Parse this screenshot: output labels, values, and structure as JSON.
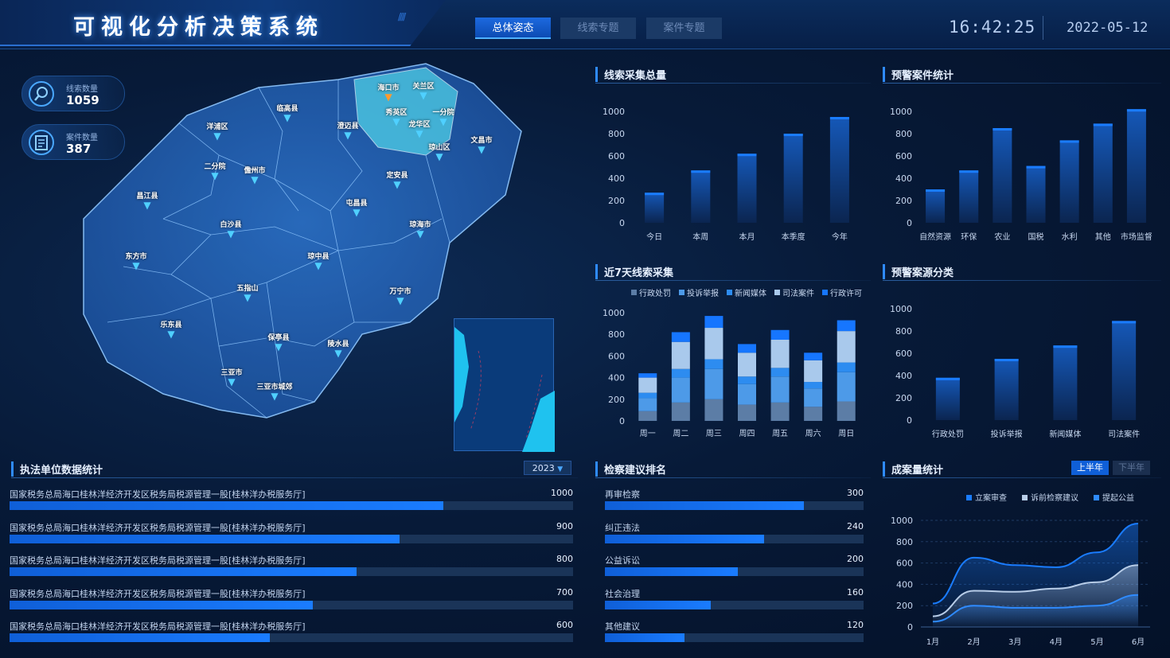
{
  "header": {
    "title": "可视化分析决策系统",
    "tabs": [
      {
        "label": "总体姿态",
        "active": true
      },
      {
        "label": "线索专题",
        "active": false
      },
      {
        "label": "案件专题",
        "active": false
      }
    ],
    "time": "16:42:25",
    "date": "2022-05-12"
  },
  "stats": [
    {
      "label": "线索数量",
      "value": "1059",
      "icon": "search-icon"
    },
    {
      "label": "案件数量",
      "value": "387",
      "icon": "document-icon"
    }
  ],
  "map": {
    "regions": [
      "海口市",
      "关兰区",
      "秀英区",
      "一分院",
      "龙华区",
      "琼山区",
      "文昌市",
      "临高县",
      "洋浦区",
      "澄迈县",
      "二分院",
      "儋州市",
      "定安县",
      "昌江县",
      "屯昌县",
      "白沙县",
      "琼海市",
      "东方市",
      "琼中县",
      "五指山",
      "万宁市",
      "乐东县",
      "保亭县",
      "陵水县",
      "三亚市",
      "三亚市城郊",
      "三沙市"
    ]
  },
  "panels": {
    "clue_total": "线索采集总量",
    "warning_cases": "预警案件统计",
    "clue_7days": "近7天线索采集",
    "warning_source": "预警案源分类",
    "enforcement": "执法单位数据统计",
    "suggestion_rank": "检察建议排名",
    "results": "成案量统计"
  },
  "year_select": "2023",
  "results_buttons": {
    "first_half": "上半年",
    "second_half": "下半年"
  },
  "enforcement_rows": [
    {
      "label": "国家税务总局海口桂林洋经济开发区税务局税源管理一股[桂林洋办税服务厅]",
      "value": 1000
    },
    {
      "label": "国家税务总局海口桂林洋经济开发区税务局税源管理一股[桂林洋办税服务厅]",
      "value": 900
    },
    {
      "label": "国家税务总局海口桂林洋经济开发区税务局税源管理一股[桂林洋办税服务厅]",
      "value": 800
    },
    {
      "label": "国家税务总局海口桂林洋经济开发区税务局税源管理一股[桂林洋办税服务厅]",
      "value": 700
    },
    {
      "label": "国家税务总局海口桂林洋经济开发区税务局税源管理一股[桂林洋办税服务厅]",
      "value": 600
    }
  ],
  "suggestion_rows": [
    {
      "label": "再审检察",
      "value": 300
    },
    {
      "label": "纠正违法",
      "value": 240
    },
    {
      "label": "公益诉讼",
      "value": 200
    },
    {
      "label": "社会治理",
      "value": 160
    },
    {
      "label": "其他建议",
      "value": 120
    }
  ],
  "colors": {
    "accent": "#1a7cff",
    "panel_bg": "#071a38",
    "highlight_region": "#4fd0e8"
  },
  "chart_data": [
    {
      "id": "clue_total",
      "type": "bar",
      "categories": [
        "今日",
        "本周",
        "本月",
        "本季度",
        "今年"
      ],
      "values": [
        270,
        470,
        620,
        800,
        950
      ],
      "ylim": [
        0,
        1000
      ],
      "yticks": [
        0,
        200,
        400,
        600,
        800,
        1000
      ]
    },
    {
      "id": "warning_cases",
      "type": "bar",
      "categories": [
        "自然资源",
        "环保",
        "农业",
        "国税",
        "水利",
        "其他",
        "市场监督"
      ],
      "values": [
        300,
        470,
        850,
        510,
        740,
        890,
        1020
      ],
      "ylim": [
        0,
        1000
      ],
      "yticks": [
        0,
        200,
        400,
        600,
        800,
        1000
      ]
    },
    {
      "id": "clue_7days",
      "type": "bar",
      "stacked": true,
      "categories": [
        "周一",
        "周二",
        "周三",
        "周四",
        "周五",
        "周六",
        "周日"
      ],
      "series": [
        {
          "name": "行政处罚",
          "color": "#5c7da6",
          "values": [
            90,
            170,
            200,
            150,
            170,
            130,
            180
          ]
        },
        {
          "name": "投诉举报",
          "color": "#4d9ae8",
          "values": [
            120,
            230,
            280,
            190,
            240,
            170,
            270
          ]
        },
        {
          "name": "新闻媒体",
          "color": "#2d8cf0",
          "values": [
            50,
            80,
            90,
            70,
            80,
            60,
            90
          ]
        },
        {
          "name": "司法案件",
          "color": "#a9c9ec",
          "values": [
            140,
            250,
            290,
            220,
            260,
            200,
            290
          ]
        },
        {
          "name": "行政许可",
          "color": "#1676ff",
          "values": [
            40,
            90,
            110,
            80,
            90,
            70,
            100
          ]
        }
      ],
      "ylim": [
        0,
        1000
      ],
      "yticks": [
        0,
        200,
        400,
        600,
        800,
        1000
      ],
      "legend": "top"
    },
    {
      "id": "warning_source",
      "type": "bar",
      "categories": [
        "行政处罚",
        "投诉举报",
        "新闻媒体",
        "司法案件"
      ],
      "values": [
        380,
        550,
        670,
        890
      ],
      "ylim": [
        0,
        1000
      ],
      "yticks": [
        0,
        200,
        400,
        600,
        800,
        1000
      ]
    },
    {
      "id": "results",
      "type": "area",
      "categories": [
        "1月",
        "2月",
        "3月",
        "4月",
        "5月",
        "6月"
      ],
      "series": [
        {
          "name": "立案审查",
          "color": "#1a7cff",
          "values": [
            220,
            650,
            580,
            560,
            700,
            970
          ]
        },
        {
          "name": "诉前检察建议",
          "color": "#b8cde8",
          "values": [
            100,
            340,
            330,
            360,
            420,
            580
          ]
        },
        {
          "name": "提起公益",
          "color": "#2f8bff",
          "values": [
            50,
            200,
            180,
            180,
            200,
            300
          ]
        }
      ],
      "ylim": [
        0,
        1000
      ],
      "yticks": [
        0,
        200,
        400,
        600,
        800,
        1000
      ],
      "legend": "top"
    }
  ]
}
